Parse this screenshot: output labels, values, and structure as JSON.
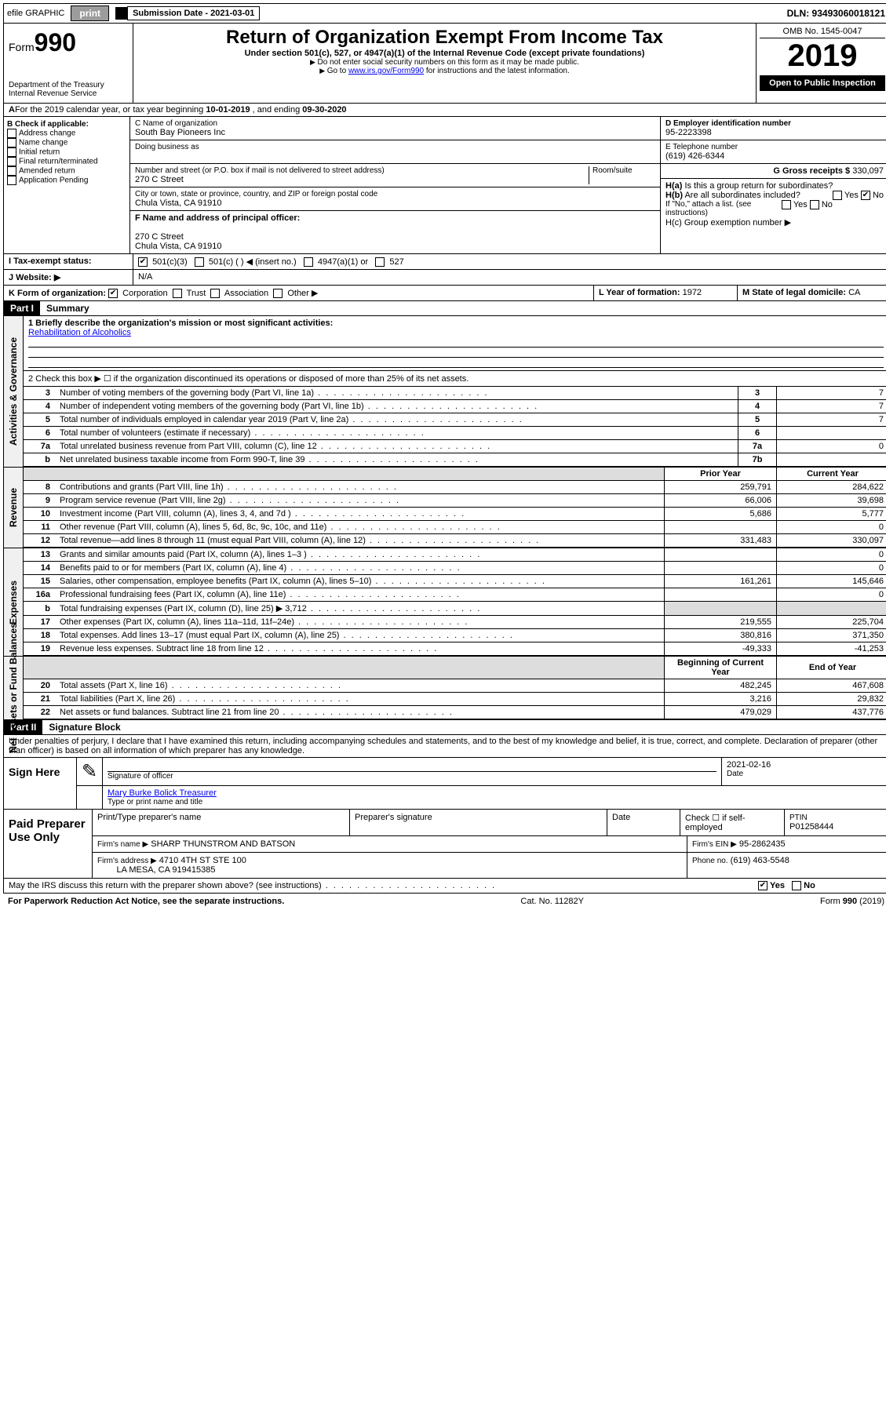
{
  "topbar": {
    "efile": "efile GRAPHIC",
    "print": "print",
    "sub_label": "Submission Date - 2021-03-01",
    "dln": "DLN: 93493060018121"
  },
  "header": {
    "form_label": "Form",
    "form_num": "990",
    "dept1": "Department of the Treasury",
    "dept2": "Internal Revenue Service",
    "title": "Return of Organization Exempt From Income Tax",
    "sub1": "Under section 501(c), 527, or 4947(a)(1) of the Internal Revenue Code (except private foundations)",
    "sub2": "Do not enter social security numbers on this form as it may be made public.",
    "sub3": "Go to www.irs.gov/Form990 for instructions and the latest information.",
    "link": "www.irs.gov/Form990",
    "omb": "OMB No. 1545-0047",
    "year": "2019",
    "open": "Open to Public Inspection"
  },
  "rowA": {
    "text_a": "For the 2019 calendar year, or tax year beginning ",
    "begin": "10-01-2019",
    "text_b": " , and ending ",
    "end": "09-30-2020"
  },
  "colB": {
    "title": "B Check if applicable:",
    "items": [
      "Address change",
      "Name change",
      "Initial return",
      "Final return/terminated",
      "Amended return",
      "Application Pending"
    ]
  },
  "colC": {
    "c_label": "C Name of organization",
    "org": "South Bay Pioneers Inc",
    "dba_label": "Doing business as",
    "addr_label": "Number and street (or P.O. box if mail is not delivered to street address)",
    "room": "Room/suite",
    "street": "270 C Street",
    "city_label": "City or town, state or province, country, and ZIP or foreign postal code",
    "city": "Chula Vista, CA  91910",
    "f_label": "F Name and address of principal officer:",
    "f_addr1": "270 C Street",
    "f_addr2": "Chula Vista, CA  91910"
  },
  "colD": {
    "d_label": "D Employer identification number",
    "ein": "95-2223398",
    "e_label": "E Telephone number",
    "phone": "(619) 426-6344",
    "g_label": "G Gross receipts $",
    "gross": "330,097"
  },
  "hblock": {
    "ha": "H(a) Is this a group return for subordinates?",
    "hb": "H(b) Are all subordinates included?",
    "hb_note": "If \"No,\" attach a list. (see instructions)",
    "hc": "H(c) Group exemption number ▶",
    "yes": "Yes",
    "no": "No"
  },
  "rowI": {
    "label": "I Tax-exempt status:",
    "o1": "501(c)(3)",
    "o2": "501(c) (   ) ◀ (insert no.)",
    "o3": "4947(a)(1) or",
    "o4": "527"
  },
  "rowJ": {
    "label": "J Website: ▶",
    "val": "N/A"
  },
  "rowK": {
    "label": "K Form of organization:",
    "o1": "Corporation",
    "o2": "Trust",
    "o3": "Association",
    "o4": "Other ▶",
    "l_label": "L Year of formation:",
    "l_val": "1972",
    "m_label": "M State of legal domicile:",
    "m_val": "CA"
  },
  "part1": {
    "bar": "Part I",
    "title": "Summary",
    "side_labels": {
      "ag": "Activities & Governance",
      "rev": "Revenue",
      "exp": "Expenses",
      "nab": "Net Assets or Fund Balances"
    },
    "q1_label": "1 Briefly describe the organization's mission or most significant activities:",
    "q1_val": "Rehabilitation of Alcoholics",
    "q2": "2  Check this box ▶ ☐ if the organization discontinued its operations or disposed of more than 25% of its net assets.",
    "rows_ag": [
      {
        "n": "3",
        "d": "Number of voting members of the governing body (Part VI, line 1a)",
        "k": "3",
        "v": "7"
      },
      {
        "n": "4",
        "d": "Number of independent voting members of the governing body (Part VI, line 1b)",
        "k": "4",
        "v": "7"
      },
      {
        "n": "5",
        "d": "Total number of individuals employed in calendar year 2019 (Part V, line 2a)",
        "k": "5",
        "v": "7"
      },
      {
        "n": "6",
        "d": "Total number of volunteers (estimate if necessary)",
        "k": "6",
        "v": ""
      },
      {
        "n": "7a",
        "d": "Total unrelated business revenue from Part VIII, column (C), line 12",
        "k": "7a",
        "v": "0"
      },
      {
        "n": "b",
        "d": "Net unrelated business taxable income from Form 990-T, line 39",
        "k": "7b",
        "v": ""
      }
    ],
    "col_headers": {
      "prior": "Prior Year",
      "curr": "Current Year",
      "beg": "Beginning of Current Year",
      "end": "End of Year"
    },
    "rows_rev": [
      {
        "n": "8",
        "d": "Contributions and grants (Part VIII, line 1h)",
        "p": "259,791",
        "c": "284,622"
      },
      {
        "n": "9",
        "d": "Program service revenue (Part VIII, line 2g)",
        "p": "66,006",
        "c": "39,698"
      },
      {
        "n": "10",
        "d": "Investment income (Part VIII, column (A), lines 3, 4, and 7d )",
        "p": "5,686",
        "c": "5,777"
      },
      {
        "n": "11",
        "d": "Other revenue (Part VIII, column (A), lines 5, 6d, 8c, 9c, 10c, and 11e)",
        "p": "",
        "c": "0"
      },
      {
        "n": "12",
        "d": "Total revenue—add lines 8 through 11 (must equal Part VIII, column (A), line 12)",
        "p": "331,483",
        "c": "330,097"
      }
    ],
    "rows_exp": [
      {
        "n": "13",
        "d": "Grants and similar amounts paid (Part IX, column (A), lines 1–3 )",
        "p": "",
        "c": "0"
      },
      {
        "n": "14",
        "d": "Benefits paid to or for members (Part IX, column (A), line 4)",
        "p": "",
        "c": "0"
      },
      {
        "n": "15",
        "d": "Salaries, other compensation, employee benefits (Part IX, column (A), lines 5–10)",
        "p": "161,261",
        "c": "145,646"
      },
      {
        "n": "16a",
        "d": "Professional fundraising fees (Part IX, column (A), line 11e)",
        "p": "",
        "c": "0"
      },
      {
        "n": "b",
        "d": "Total fundraising expenses (Part IX, column (D), line 25) ▶ 3,712",
        "p": "shade",
        "c": "shade"
      },
      {
        "n": "17",
        "d": "Other expenses (Part IX, column (A), lines 11a–11d, 11f–24e)",
        "p": "219,555",
        "c": "225,704"
      },
      {
        "n": "18",
        "d": "Total expenses. Add lines 13–17 (must equal Part IX, column (A), line 25)",
        "p": "380,816",
        "c": "371,350"
      },
      {
        "n": "19",
        "d": "Revenue less expenses. Subtract line 18 from line 12",
        "p": "-49,333",
        "c": "-41,253"
      }
    ],
    "rows_nab": [
      {
        "n": "20",
        "d": "Total assets (Part X, line 16)",
        "p": "482,245",
        "c": "467,608"
      },
      {
        "n": "21",
        "d": "Total liabilities (Part X, line 26)",
        "p": "3,216",
        "c": "29,832"
      },
      {
        "n": "22",
        "d": "Net assets or fund balances. Subtract line 21 from line 20",
        "p": "479,029",
        "c": "437,776"
      }
    ]
  },
  "part2": {
    "bar": "Part II",
    "title": "Signature Block",
    "perjury": "Under penalties of perjury, I declare that I have examined this return, including accompanying schedules and statements, and to the best of my knowledge and belief, it is true, correct, and complete. Declaration of preparer (other than officer) is based on all information of which preparer has any knowledge.",
    "sign_here": "Sign Here",
    "sig_officer": "Signature of officer",
    "date": "2021-02-16",
    "date_label": "Date",
    "name": "Mary Burke Bolick Treasurer",
    "name_label": "Type or print name and title"
  },
  "paid": {
    "label": "Paid Preparer Use Only",
    "h1": "Print/Type preparer's name",
    "h2": "Preparer's signature",
    "h3": "Date",
    "ck": "Check ☐ if self-employed",
    "ptin_l": "PTIN",
    "ptin": "P01258444",
    "firm_l": "Firm's name ▶",
    "firm": "SHARP THUNSTROM AND BATSON",
    "fein_l": "Firm's EIN ▶",
    "fein": "95-2862435",
    "addr_l": "Firm's address ▶",
    "addr1": "4710 4TH ST STE 100",
    "addr2": "LA MESA, CA  919415385",
    "ph_l": "Phone no.",
    "ph": "(619) 463-5548"
  },
  "discuss": {
    "q": "May the IRS discuss this return with the preparer shown above? (see instructions)",
    "yes": "Yes",
    "no": "No"
  },
  "footer": {
    "l": "For Paperwork Reduction Act Notice, see the separate instructions.",
    "c": "Cat. No. 11282Y",
    "r": "Form 990 (2019)"
  }
}
